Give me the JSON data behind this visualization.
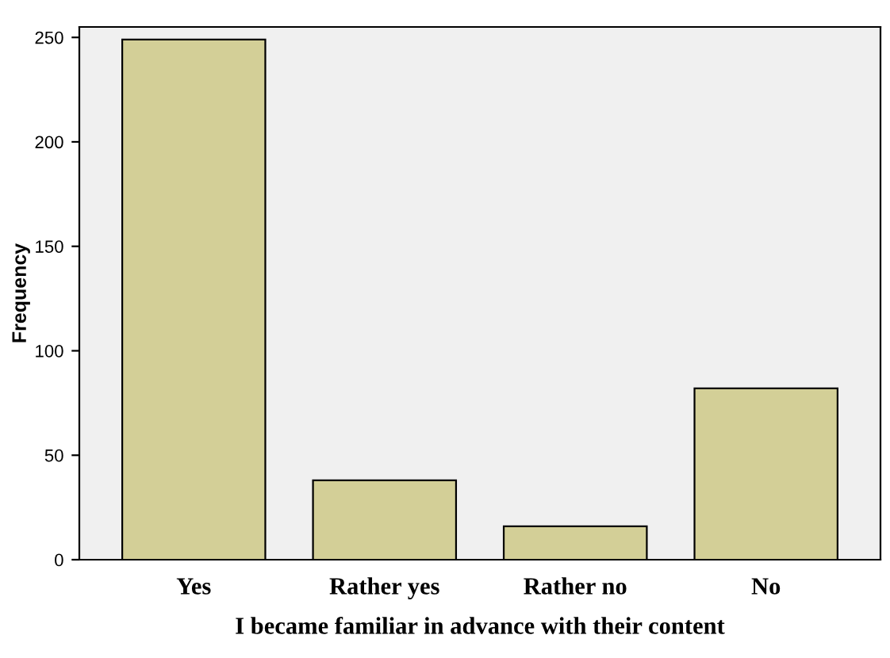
{
  "chart_data": {
    "type": "bar",
    "xlabel": "I became familiar in advance with their content",
    "ylabel": "Frequency",
    "categories": [
      "Yes",
      "Rather yes",
      "Rather no",
      "No"
    ],
    "values": [
      249,
      38,
      16,
      82
    ],
    "color": "#d3cf97",
    "ylim": [
      0,
      255
    ],
    "yticks": [
      0,
      50,
      100,
      150,
      200,
      250
    ],
    "grid": false,
    "legend": false
  }
}
